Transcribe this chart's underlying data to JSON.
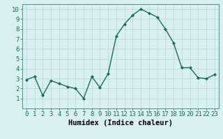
{
  "x": [
    0,
    1,
    2,
    3,
    4,
    5,
    6,
    7,
    8,
    9,
    10,
    11,
    12,
    13,
    14,
    15,
    16,
    17,
    18,
    19,
    20,
    21,
    22,
    23
  ],
  "y": [
    2.9,
    3.2,
    1.3,
    2.8,
    2.5,
    2.2,
    2.0,
    1.0,
    3.2,
    2.1,
    3.5,
    7.3,
    8.5,
    9.4,
    10.0,
    9.6,
    9.2,
    8.0,
    6.6,
    4.1,
    4.1,
    3.1,
    3.0,
    3.4
  ],
  "xlabel": "Humidex (Indice chaleur)",
  "ylim": [
    0,
    10.5
  ],
  "xlim": [
    -0.5,
    23.5
  ],
  "yticks": [
    1,
    2,
    3,
    4,
    5,
    6,
    7,
    8,
    9,
    10
  ],
  "xticks": [
    0,
    1,
    2,
    3,
    4,
    5,
    6,
    7,
    8,
    9,
    10,
    11,
    12,
    13,
    14,
    15,
    16,
    17,
    18,
    19,
    20,
    21,
    22,
    23
  ],
  "line_color": "#1a6b5a",
  "marker": "D",
  "marker_size": 2.0,
  "line_width": 1.0,
  "bg_color": "#d8f0f0",
  "grid_color": "#b8d4d4",
  "xlabel_fontsize": 7.5,
  "tick_fontsize": 6.5
}
